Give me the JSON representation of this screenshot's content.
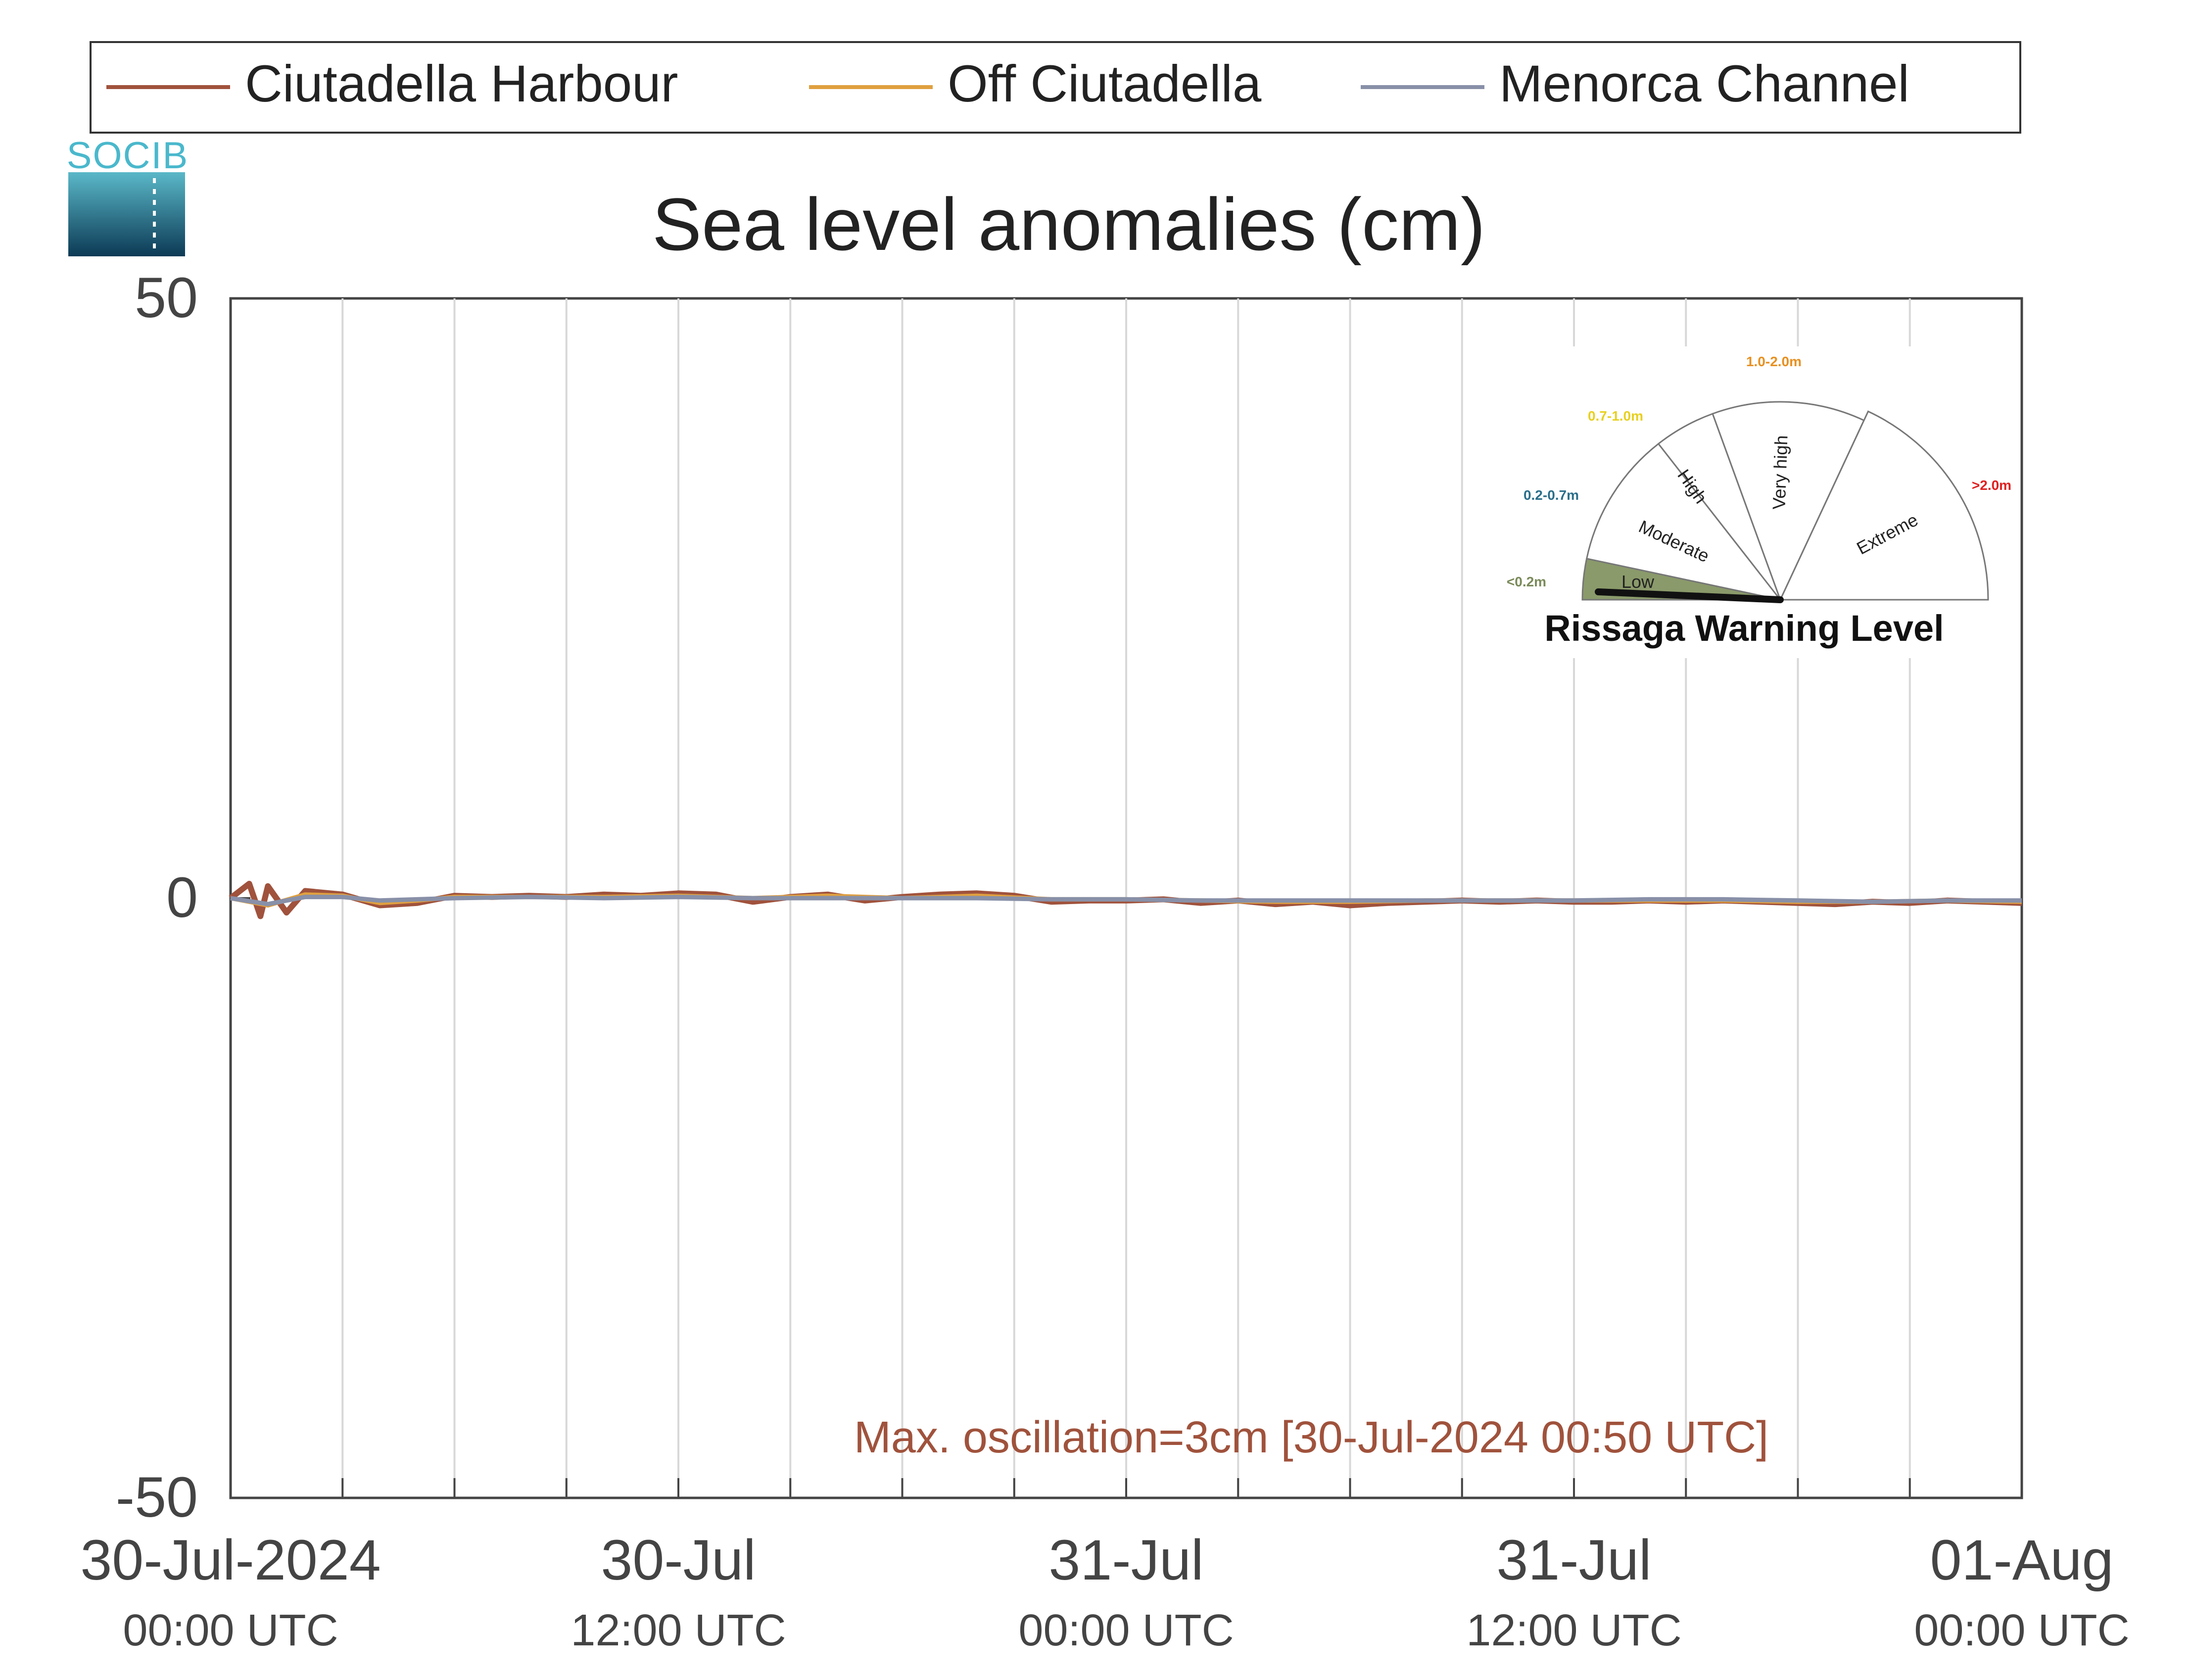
{
  "legend": {
    "items": [
      {
        "label": "Ciutadella Harbour",
        "color": "#a0523c"
      },
      {
        "label": "Off Ciutadella",
        "color": "#e0a040"
      },
      {
        "label": "Menorca Channel",
        "color": "#8890a8"
      }
    ]
  },
  "logo": {
    "text": "SOCIB"
  },
  "annotation": {
    "text": "Max. oscillation=3cm [30-Jul-2024 00:50 UTC]",
    "color": "#a0523c"
  },
  "warning": {
    "title": "Rissaga Warning Level",
    "level": "Low",
    "sectors": [
      {
        "name": "Low",
        "range": "<0.2m",
        "range_color": "#7a8a5a",
        "fill": "#8a9a6a"
      },
      {
        "name": "Moderate",
        "range": "0.2-0.7m",
        "range_color": "#2a6e8a",
        "fill": "#ffffff"
      },
      {
        "name": "High",
        "range": "0.7-1.0m",
        "range_color": "#e8d020",
        "fill": "#ffffff"
      },
      {
        "name": "Very high",
        "range": "1.0-2.0m",
        "range_color": "#e89020",
        "fill": "#ffffff"
      },
      {
        "name": "Extreme",
        "range": ">2.0m",
        "range_color": "#e02020",
        "fill": "#ffffff"
      }
    ]
  },
  "chart_data": {
    "type": "line",
    "title": "Sea level anomalies (cm)",
    "ylim": [
      -50,
      50
    ],
    "yticks": [
      -50,
      0,
      50
    ],
    "x_range_hours": [
      0,
      48
    ],
    "grid": "vertical",
    "legend_position": "top",
    "x_ticks": [
      {
        "hour": 0,
        "date": "30-Jul-2024",
        "time": "00:00 UTC"
      },
      {
        "hour": 12,
        "date": "30-Jul",
        "time": "12:00 UTC"
      },
      {
        "hour": 24,
        "date": "31-Jul",
        "time": "00:00 UTC"
      },
      {
        "hour": 36,
        "date": "31-Jul",
        "time": "12:00 UTC"
      },
      {
        "hour": 48,
        "date": "01-Aug",
        "time": "00:00 UTC"
      }
    ],
    "minor_tick_interval_hours": 3,
    "series": [
      {
        "name": "Ciutadella Harbour",
        "color": "#a0523c",
        "hours": [
          0,
          0.5,
          0.8,
          1.0,
          1.5,
          2,
          3,
          4,
          5,
          6,
          7,
          8,
          9,
          10,
          11,
          12,
          13,
          14,
          15,
          16,
          17,
          18,
          19,
          20,
          21,
          22,
          23,
          24,
          25,
          26,
          27,
          28,
          29,
          30,
          31,
          32,
          33,
          34,
          35,
          36,
          37,
          38,
          39,
          40,
          41,
          42,
          43,
          44,
          45,
          46,
          47,
          48
        ],
        "values": [
          0,
          1.2,
          -1.5,
          1.0,
          -1.2,
          0.6,
          0.3,
          -0.6,
          -0.4,
          0.2,
          0.1,
          0.2,
          0.1,
          0.3,
          0.2,
          0.4,
          0.3,
          -0.3,
          0.1,
          0.3,
          -0.2,
          0.1,
          0.3,
          0.4,
          0.2,
          -0.3,
          -0.2,
          -0.2,
          -0.1,
          -0.4,
          -0.2,
          -0.5,
          -0.3,
          -0.6,
          -0.4,
          -0.3,
          -0.2,
          -0.3,
          -0.2,
          -0.3,
          -0.3,
          -0.2,
          -0.3,
          -0.2,
          -0.3,
          -0.4,
          -0.5,
          -0.3,
          -0.4,
          -0.2,
          -0.3,
          -0.4
        ]
      },
      {
        "name": "Off Ciutadella",
        "color": "#e0a040",
        "hours": [
          0,
          1,
          2,
          3,
          4,
          5,
          6,
          8,
          10,
          12,
          14,
          16,
          18,
          20,
          22,
          24,
          26,
          28,
          30,
          32,
          34,
          36,
          38,
          40,
          42,
          44,
          46,
          48
        ],
        "values": [
          0,
          -0.6,
          0.3,
          0.2,
          -0.4,
          -0.2,
          0.1,
          0.1,
          0.1,
          0.2,
          0,
          0.2,
          0,
          0.2,
          -0.1,
          -0.1,
          -0.2,
          -0.3,
          -0.3,
          -0.2,
          -0.2,
          -0.2,
          -0.2,
          -0.2,
          -0.3,
          -0.3,
          -0.2,
          -0.3
        ]
      },
      {
        "name": "Menorca Channel",
        "color": "#8890a8",
        "hours": [
          0,
          1,
          2,
          3,
          4,
          6,
          8,
          10,
          12,
          14,
          16,
          18,
          20,
          22,
          24,
          26,
          28,
          30,
          32,
          34,
          36,
          38,
          40,
          42,
          44,
          46,
          48
        ],
        "values": [
          0,
          -0.5,
          0.1,
          0.1,
          -0.2,
          0,
          0.1,
          0,
          0.1,
          0,
          0,
          0,
          0,
          -0.1,
          -0.1,
          -0.2,
          -0.2,
          -0.2,
          -0.2,
          -0.2,
          -0.2,
          -0.1,
          -0.1,
          -0.2,
          -0.3,
          -0.2,
          -0.2
        ]
      }
    ]
  }
}
